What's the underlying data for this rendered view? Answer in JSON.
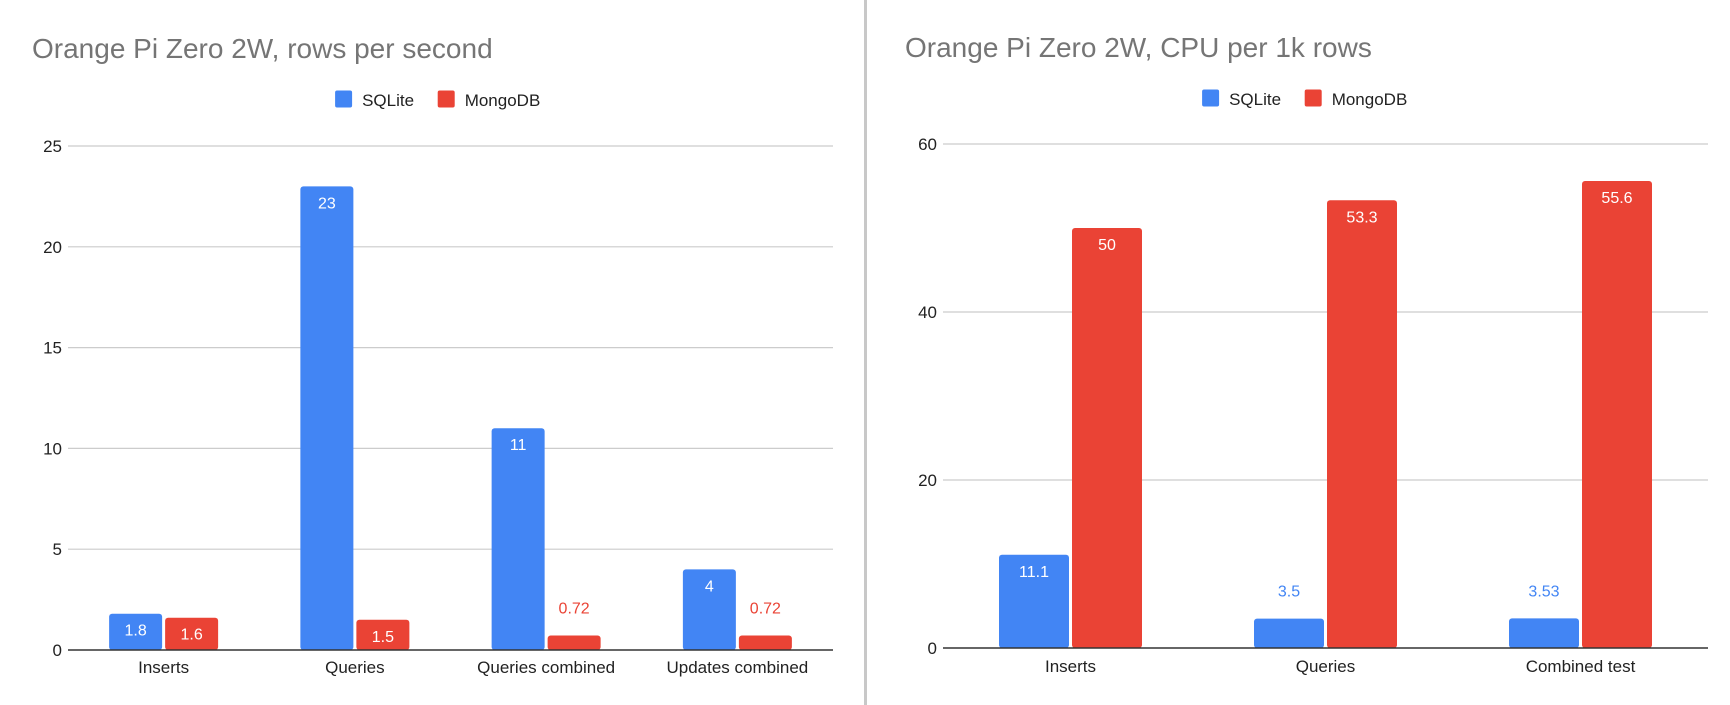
{
  "colors": {
    "sqlite": "#4285f4",
    "mongodb": "#ea4335",
    "axis_text": "#222222",
    "title": "#757575",
    "grid": "#cccccc"
  },
  "chart_data": [
    {
      "type": "bar",
      "title": "Orange Pi Zero 2W, rows per second",
      "legend_position": "top",
      "grid": true,
      "ylim": [
        0,
        25
      ],
      "yticks": [
        "0",
        "5",
        "10",
        "15",
        "20",
        "25"
      ],
      "categories": [
        "Inserts",
        "Queries",
        "Queries combined",
        "Updates combined"
      ],
      "series": [
        {
          "name": "SQLite",
          "values": [
            1.8,
            23,
            11,
            4
          ],
          "labels": [
            "1.8",
            "23",
            "11",
            "4"
          ]
        },
        {
          "name": "MongoDB",
          "values": [
            1.6,
            1.5,
            0.72,
            0.72
          ],
          "labels": [
            "1.6",
            "1.5",
            "0.72",
            "0.72"
          ]
        }
      ]
    },
    {
      "type": "bar",
      "title": "Orange Pi Zero 2W, CPU per 1k rows",
      "legend_position": "top",
      "grid": true,
      "ylim": [
        0,
        60
      ],
      "yticks": [
        "0",
        "20",
        "40",
        "60"
      ],
      "categories": [
        "Inserts",
        "Queries",
        "Combined test"
      ],
      "series": [
        {
          "name": "SQLite",
          "values": [
            11.1,
            3.5,
            3.53
          ],
          "labels": [
            "11.1",
            "3.5",
            "3.53"
          ]
        },
        {
          "name": "MongoDB",
          "values": [
            50,
            53.3,
            55.6
          ],
          "labels": [
            "50",
            "53.3",
            "55.6"
          ]
        }
      ]
    }
  ]
}
